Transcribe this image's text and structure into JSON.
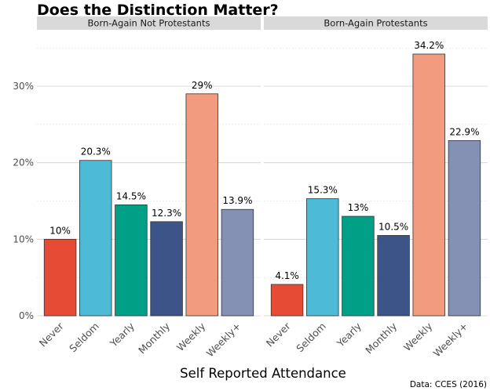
{
  "chart_data": {
    "type": "bar",
    "title": "Does the Distinction Matter?",
    "xlabel": "Self Reported Attendance",
    "ylabel": "",
    "caption": "Data: CCES (2016)",
    "ylim": [
      0,
      0.36
    ],
    "yticks": [
      0,
      0.1,
      0.2,
      0.3
    ],
    "ytick_labels": [
      "0%",
      "10%",
      "20%",
      "30%"
    ],
    "grid": true,
    "categories": [
      "Never",
      "Seldom",
      "Yearly",
      "Monthly",
      "Weekly",
      "Weekly+"
    ],
    "colors": [
      "#e64b35",
      "#4dbbd5",
      "#00a087",
      "#3c5488",
      "#f39b7f",
      "#8491b4"
    ],
    "panels": [
      {
        "name": "Born-Again Not Protestants",
        "values": [
          0.1,
          0.203,
          0.145,
          0.123,
          0.29,
          0.139
        ],
        "labels": [
          "10%",
          "20.3%",
          "14.5%",
          "12.3%",
          "29%",
          "13.9%"
        ]
      },
      {
        "name": "Born-Again Protestants",
        "values": [
          0.041,
          0.153,
          0.13,
          0.105,
          0.342,
          0.229
        ],
        "labels": [
          "4.1%",
          "15.3%",
          "13%",
          "10.5%",
          "34.2%",
          "22.9%"
        ]
      }
    ]
  }
}
